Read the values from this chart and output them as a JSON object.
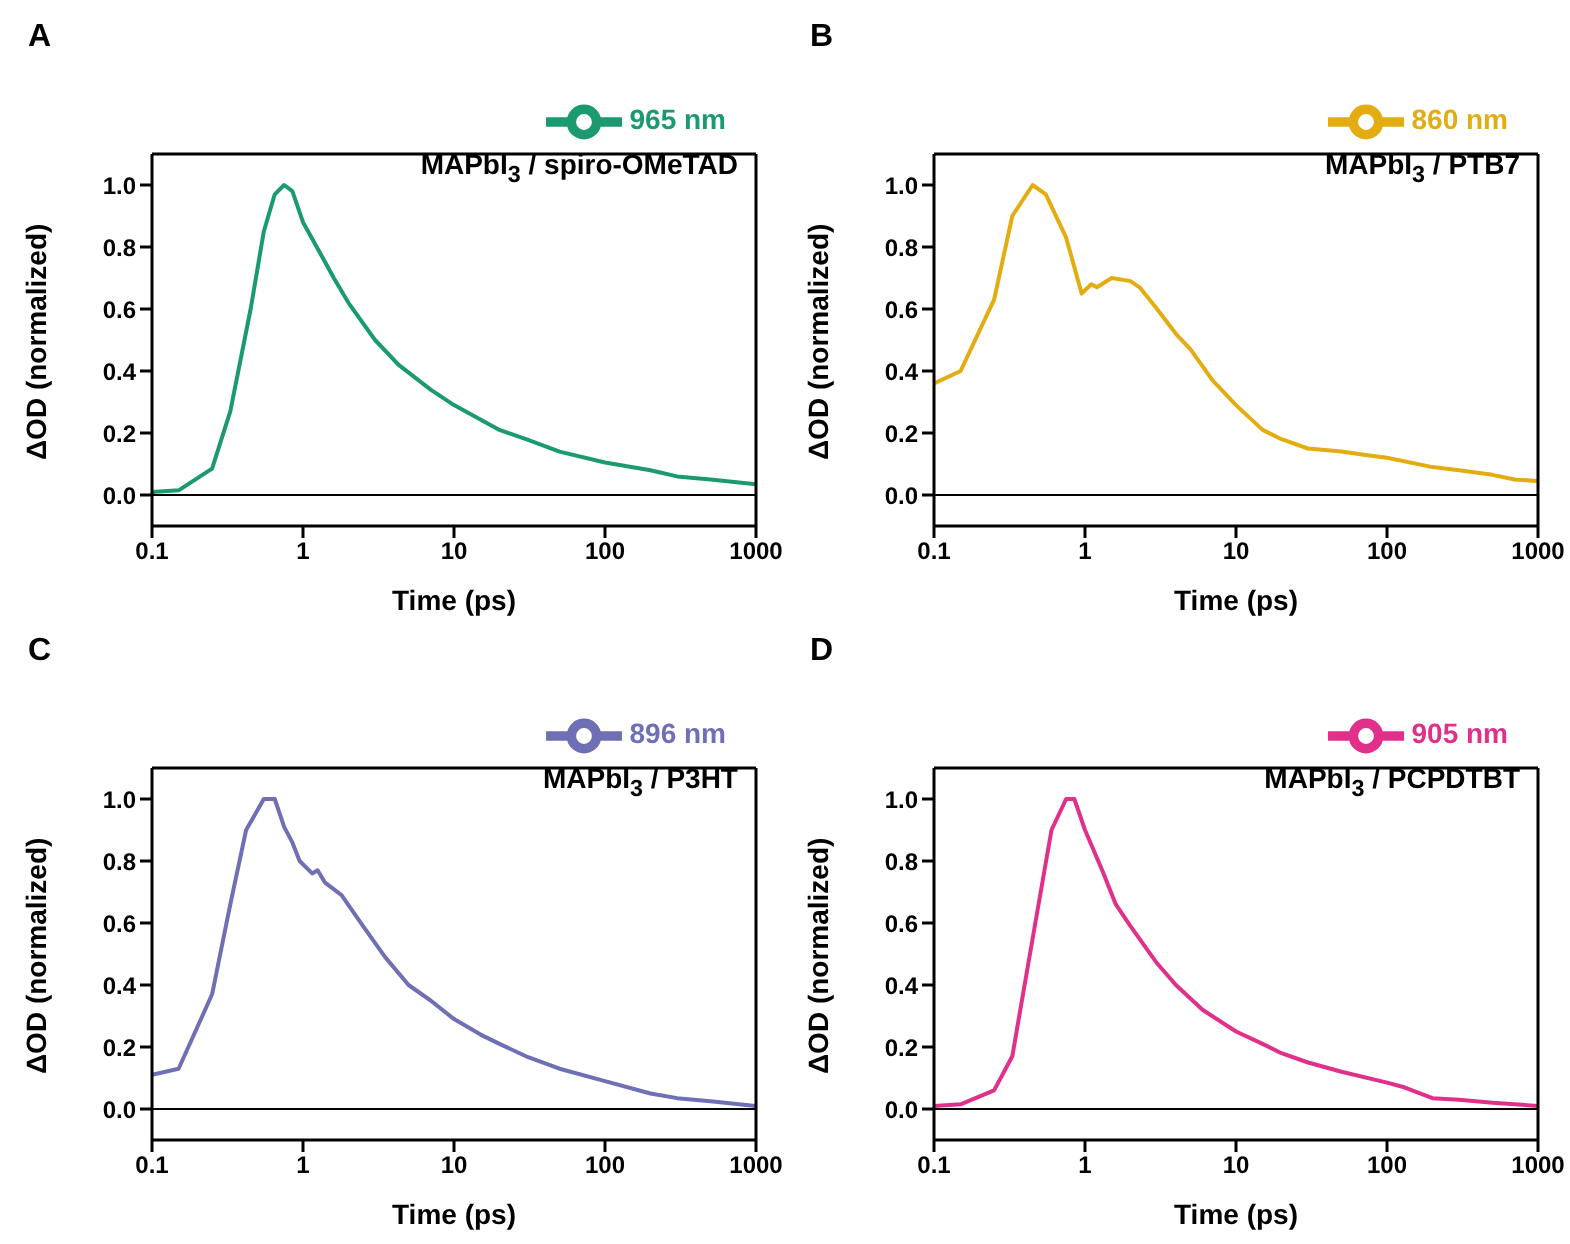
{
  "chart_data": [
    {
      "type": "line",
      "title": "A",
      "xlabel": "Time (ps)",
      "ylabel": "ΔOD (normalized)",
      "log": "x",
      "legend": "top right",
      "xlim": [
        0.1,
        1000
      ],
      "xticks": [
        0.1,
        1,
        10,
        100,
        1000
      ],
      "ylim": [
        -0.1,
        1.1
      ],
      "yticks": [
        {
          "value": 0,
          "label": "0.0"
        },
        {
          "value": 0.2,
          "label": "0.2"
        },
        {
          "value": 0.4,
          "label": "0.4"
        },
        {
          "value": 0.6,
          "label": "0.6"
        },
        {
          "value": 0.8,
          "label": "0.8"
        },
        {
          "value": 1,
          "label": "1.0"
        }
      ],
      "ref_lines": [
        {
          "axis": "y",
          "value": 0,
          "color": "#000000"
        }
      ],
      "annotations": [
        "MAPbI$_{3}$ / spiro-OMeTAD"
      ],
      "series": [
        {
          "name": "965 nm",
          "color": "#1a9a6e",
          "x": [
            0.1,
            0.15,
            0.25,
            0.33,
            0.45,
            0.55,
            0.65,
            0.75,
            0.85,
            1,
            1.3,
            1.6,
            2,
            3,
            4.3,
            7,
            10,
            20,
            30,
            50,
            100,
            200,
            300,
            500,
            1000
          ],
          "values": [
            0.01,
            0.015,
            0.085,
            0.27,
            0.6,
            0.85,
            0.97,
            1.0,
            0.98,
            0.88,
            0.78,
            0.7,
            0.62,
            0.5,
            0.42,
            0.34,
            0.29,
            0.21,
            0.18,
            0.14,
            0.105,
            0.08,
            0.06,
            0.05,
            0.035
          ]
        }
      ]
    },
    {
      "type": "line",
      "title": "B",
      "xlabel": "Time (ps)",
      "ylabel": "ΔOD (normalized)",
      "log": "x",
      "legend": "top right",
      "xlim": [
        0.1,
        1000
      ],
      "xticks": [
        0.1,
        1,
        10,
        100,
        1000
      ],
      "ylim": [
        -0.1,
        1.1
      ],
      "yticks": [
        {
          "value": 0,
          "label": "0.0"
        },
        {
          "value": 0.2,
          "label": "0.2"
        },
        {
          "value": 0.4,
          "label": "0.4"
        },
        {
          "value": 0.6,
          "label": "0.6"
        },
        {
          "value": 0.8,
          "label": "0.8"
        },
        {
          "value": 1,
          "label": "1.0"
        }
      ],
      "ref_lines": [
        {
          "axis": "y",
          "value": 0,
          "color": "#000000"
        }
      ],
      "annotations": [
        "MAPbI$_{3}$ / PTB7"
      ],
      "series": [
        {
          "name": "860 nm",
          "color": "#e3ad12",
          "x": [
            0.1,
            0.15,
            0.25,
            0.33,
            0.45,
            0.55,
            0.75,
            0.95,
            1.1,
            1.2,
            1.5,
            2,
            2.3,
            3,
            4,
            5,
            7,
            10,
            15,
            20,
            30,
            50,
            70,
            100,
            200,
            300,
            500,
            700,
            1000
          ],
          "values": [
            0.36,
            0.4,
            0.63,
            0.9,
            1.0,
            0.97,
            0.83,
            0.65,
            0.68,
            0.67,
            0.7,
            0.69,
            0.67,
            0.6,
            0.52,
            0.47,
            0.37,
            0.29,
            0.21,
            0.18,
            0.15,
            0.14,
            0.13,
            0.12,
            0.09,
            0.08,
            0.065,
            0.05,
            0.045
          ]
        }
      ]
    },
    {
      "type": "line",
      "title": "C",
      "xlabel": "Time (ps)",
      "ylabel": "ΔOD (normalized)",
      "log": "x",
      "legend": "top right",
      "xlim": [
        0.1,
        1000
      ],
      "xticks": [
        0.1,
        1,
        10,
        100,
        1000
      ],
      "ylim": [
        -0.1,
        1.1
      ],
      "yticks": [
        {
          "value": 0,
          "label": "0.0"
        },
        {
          "value": 0.2,
          "label": "0.2"
        },
        {
          "value": 0.4,
          "label": "0.4"
        },
        {
          "value": 0.6,
          "label": "0.6"
        },
        {
          "value": 0.8,
          "label": "0.8"
        },
        {
          "value": 1,
          "label": "1.0"
        }
      ],
      "ref_lines": [
        {
          "axis": "y",
          "value": 0,
          "color": "#000000"
        }
      ],
      "annotations": [
        "MAPbI$_{3}$ / P3HT"
      ],
      "series": [
        {
          "name": "896 nm",
          "color": "#6f6fb5",
          "x": [
            0.1,
            0.15,
            0.25,
            0.33,
            0.42,
            0.55,
            0.65,
            0.75,
            0.85,
            0.95,
            1.15,
            1.25,
            1.4,
            1.8,
            2.5,
            3.5,
            5,
            7,
            10,
            15,
            20,
            30,
            50,
            100,
            200,
            300,
            500,
            1000
          ],
          "values": [
            0.11,
            0.13,
            0.37,
            0.66,
            0.9,
            1.0,
            1.0,
            0.91,
            0.86,
            0.8,
            0.76,
            0.77,
            0.73,
            0.69,
            0.59,
            0.49,
            0.4,
            0.35,
            0.29,
            0.24,
            0.21,
            0.17,
            0.13,
            0.09,
            0.05,
            0.035,
            0.025,
            0.01
          ]
        }
      ]
    },
    {
      "type": "line",
      "title": "D",
      "xlabel": "Time (ps)",
      "ylabel": "ΔOD (normalized)",
      "log": "x",
      "legend": "top right",
      "xlim": [
        0.1,
        1000
      ],
      "xticks": [
        0.1,
        1,
        10,
        100,
        1000
      ],
      "ylim": [
        -0.1,
        1.1
      ],
      "yticks": [
        {
          "value": 0,
          "label": "0.0"
        },
        {
          "value": 0.2,
          "label": "0.2"
        },
        {
          "value": 0.4,
          "label": "0.4"
        },
        {
          "value": 0.6,
          "label": "0.6"
        },
        {
          "value": 0.8,
          "label": "0.8"
        },
        {
          "value": 1,
          "label": "1.0"
        }
      ],
      "ref_lines": [
        {
          "axis": "y",
          "value": 0,
          "color": "#000000"
        }
      ],
      "annotations": [
        "MAPbI$_{3}$ / PCPDTBT"
      ],
      "series": [
        {
          "name": "905 nm",
          "color": "#e0308a",
          "x": [
            0.1,
            0.15,
            0.25,
            0.33,
            0.45,
            0.6,
            0.75,
            0.85,
            1,
            1.3,
            1.6,
            2,
            3,
            4,
            6,
            10,
            15,
            20,
            30,
            50,
            100,
            130,
            200,
            300,
            500,
            1000
          ],
          "values": [
            0.01,
            0.015,
            0.06,
            0.17,
            0.55,
            0.9,
            1.0,
            1.0,
            0.9,
            0.77,
            0.66,
            0.59,
            0.47,
            0.4,
            0.32,
            0.25,
            0.21,
            0.18,
            0.15,
            0.12,
            0.085,
            0.07,
            0.035,
            0.03,
            0.02,
            0.01
          ]
        }
      ]
    }
  ]
}
